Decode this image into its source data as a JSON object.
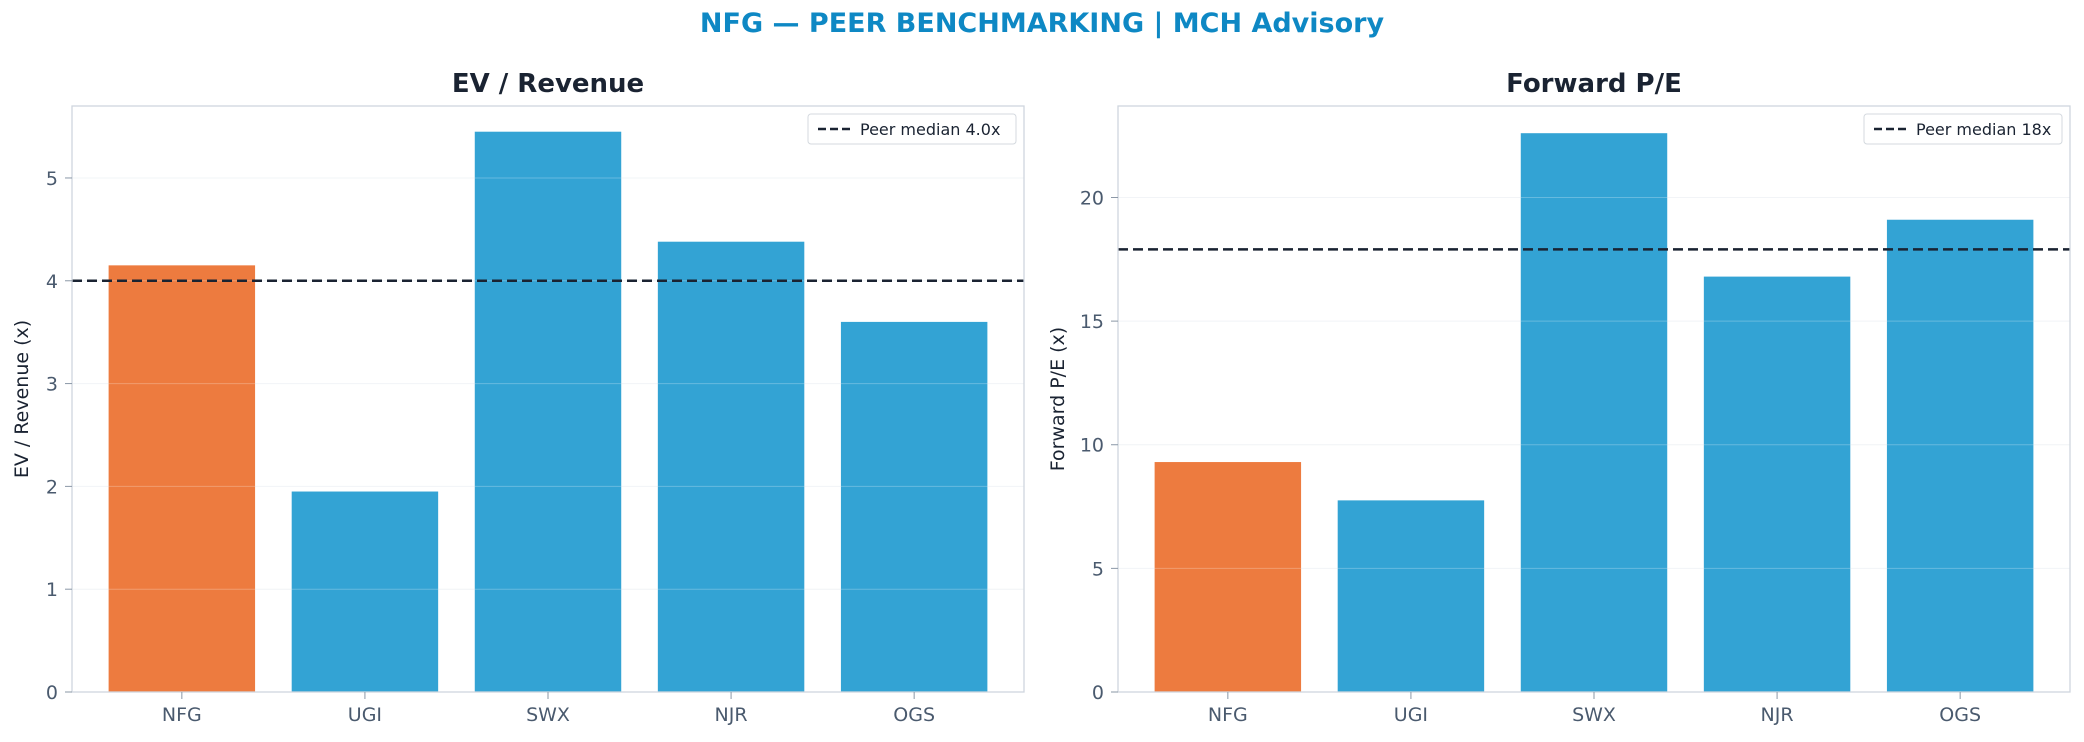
{
  "suptitle": "NFG — PEER BENCHMARKING | MCH Advisory",
  "colors": {
    "title": "#0e88c4",
    "highlight": "#ed7b3f",
    "peer": "#33a3d4",
    "median": "#1a2332",
    "axis_text": "#4a5a6e",
    "label_text": "#1a2332"
  },
  "chart_data": [
    {
      "type": "bar",
      "title": "EV / Revenue",
      "ylabel": "EV / Revenue (x)",
      "xlabel": "",
      "categories": [
        "NFG",
        "UGI",
        "SWX",
        "NJR",
        "OGS"
      ],
      "values": [
        4.15,
        1.95,
        5.45,
        4.38,
        3.6
      ],
      "highlight_category": "NFG",
      "ylim": [
        0,
        5.7
      ],
      "yticks": [
        0,
        1,
        2,
        3,
        4,
        5
      ],
      "ytick_labels": [
        "0",
        "1",
        "2",
        "3",
        "4",
        "5"
      ],
      "grid": true,
      "reference_line": {
        "value": 4.0,
        "label": "Peer median 4.0x",
        "style": "dashed"
      },
      "legend_position": "top-right"
    },
    {
      "type": "bar",
      "title": "Forward P/E",
      "ylabel": "Forward P/E (x)",
      "xlabel": "",
      "categories": [
        "NFG",
        "UGI",
        "SWX",
        "NJR",
        "OGS"
      ],
      "values": [
        9.3,
        7.75,
        22.6,
        16.8,
        19.1
      ],
      "highlight_category": "NFG",
      "ylim": [
        0,
        23.7
      ],
      "yticks": [
        0,
        5,
        10,
        15,
        20
      ],
      "ytick_labels": [
        "0",
        "5",
        "10",
        "15",
        "20"
      ],
      "grid": true,
      "reference_line": {
        "value": 17.9,
        "label": "Peer median 18x",
        "style": "dashed"
      },
      "legend_position": "top-right"
    }
  ]
}
